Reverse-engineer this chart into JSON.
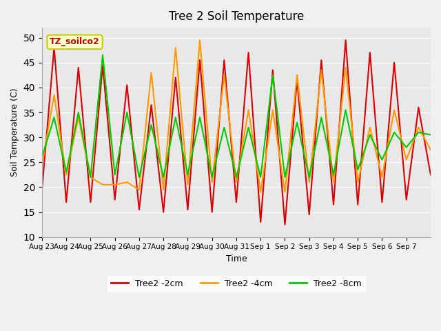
{
  "title": "Tree 2 Soil Temperature",
  "xlabel": "Time",
  "ylabel": "Soil Temperature (C)",
  "ylim": [
    10,
    52
  ],
  "yticks": [
    10,
    15,
    20,
    25,
    30,
    35,
    40,
    45,
    50
  ],
  "fig_facecolor": "#f0f0f0",
  "ax_facecolor": "#e8e8e8",
  "annotation_text": "TZ_soilco2",
  "annotation_bbox_facecolor": "#ffffcc",
  "annotation_bbox_edgecolor": "#cccc00",
  "legend_labels": [
    "Tree2 -2cm",
    "Tree2 -4cm",
    "Tree2 -8cm"
  ],
  "line_colors": [
    "#dd0000",
    "#ff9900",
    "#00cc00"
  ],
  "x_tick_labels": [
    "Aug 23",
    "Aug 24",
    "Aug 25",
    "Aug 26",
    "Aug 27",
    "Aug 28",
    "Aug 29",
    "Aug 30",
    "Aug 31",
    "Sep 1",
    "Sep 2",
    "Sep 3",
    "Sep 4",
    "Sep 5",
    "Sep 6",
    "Sep 7"
  ],
  "tree2_2cm": [
    19.5,
    48.0,
    17.0,
    44.0,
    17.0,
    44.5,
    17.5,
    40.5,
    15.5,
    36.5,
    15.0,
    42.0,
    15.5,
    45.5,
    15.0,
    45.5,
    17.0,
    47.0,
    13.0,
    43.5,
    12.5,
    41.5,
    14.5,
    45.5,
    16.5,
    49.5,
    16.5,
    47.0,
    17.0,
    45.0,
    17.5,
    36.0,
    22.5
  ],
  "tree2_4cm": [
    24.5,
    38.5,
    22.5,
    34.0,
    22.0,
    20.5,
    20.5,
    21.0,
    19.5,
    43.0,
    19.5,
    48.0,
    20.5,
    49.5,
    21.0,
    42.5,
    21.0,
    35.5,
    19.0,
    35.5,
    19.0,
    42.5,
    21.0,
    43.5,
    21.0,
    44.0,
    21.0,
    32.0,
    22.0,
    35.5,
    25.5,
    32.0,
    27.5
  ],
  "tree2_8cm": [
    26.0,
    34.0,
    23.0,
    35.0,
    22.0,
    46.5,
    22.5,
    35.0,
    22.0,
    32.5,
    22.0,
    34.0,
    22.5,
    34.0,
    22.0,
    32.0,
    22.0,
    32.0,
    22.0,
    42.5,
    22.0,
    33.0,
    22.0,
    34.0,
    22.5,
    35.5,
    23.5,
    30.5,
    25.5,
    31.0,
    28.0,
    31.0,
    30.5
  ]
}
